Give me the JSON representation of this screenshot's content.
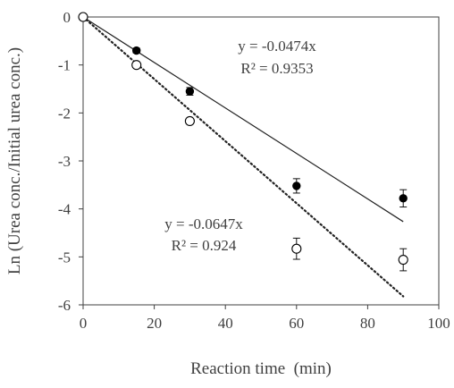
{
  "chart_data": {
    "type": "scatter",
    "xlabel": "Reaction time  (min)",
    "ylabel": "Ln (Urea conc./Initial urea conc.)",
    "xlim": [
      0,
      100
    ],
    "ylim": [
      -6,
      0
    ],
    "xticks": [
      0,
      20,
      40,
      60,
      80,
      100
    ],
    "yticks": [
      0,
      -1,
      -2,
      -3,
      -4,
      -5,
      -6
    ],
    "grid": false,
    "series": [
      {
        "marker": "filled-circle",
        "x": [
          0,
          15,
          30,
          60,
          90
        ],
        "y": [
          0,
          -0.7,
          -1.55,
          -3.52,
          -3.78
        ],
        "error": [
          0,
          0.05,
          0.08,
          0.15,
          0.18
        ],
        "fit": {
          "slope": -0.0474,
          "line_style": "solid",
          "equation": "y = -0.0474x",
          "r2": "R² = 0.9353"
        }
      },
      {
        "marker": "open-circle",
        "x": [
          0,
          15,
          30,
          60,
          90
        ],
        "y": [
          0,
          -1.0,
          -2.17,
          -4.83,
          -5.06
        ],
        "error": [
          0,
          0.04,
          0.06,
          0.22,
          0.23
        ],
        "fit": {
          "slope": -0.0647,
          "line_style": "dotted",
          "equation": "y = -0.0647x",
          "r2": "R² = 0.924"
        }
      }
    ]
  }
}
